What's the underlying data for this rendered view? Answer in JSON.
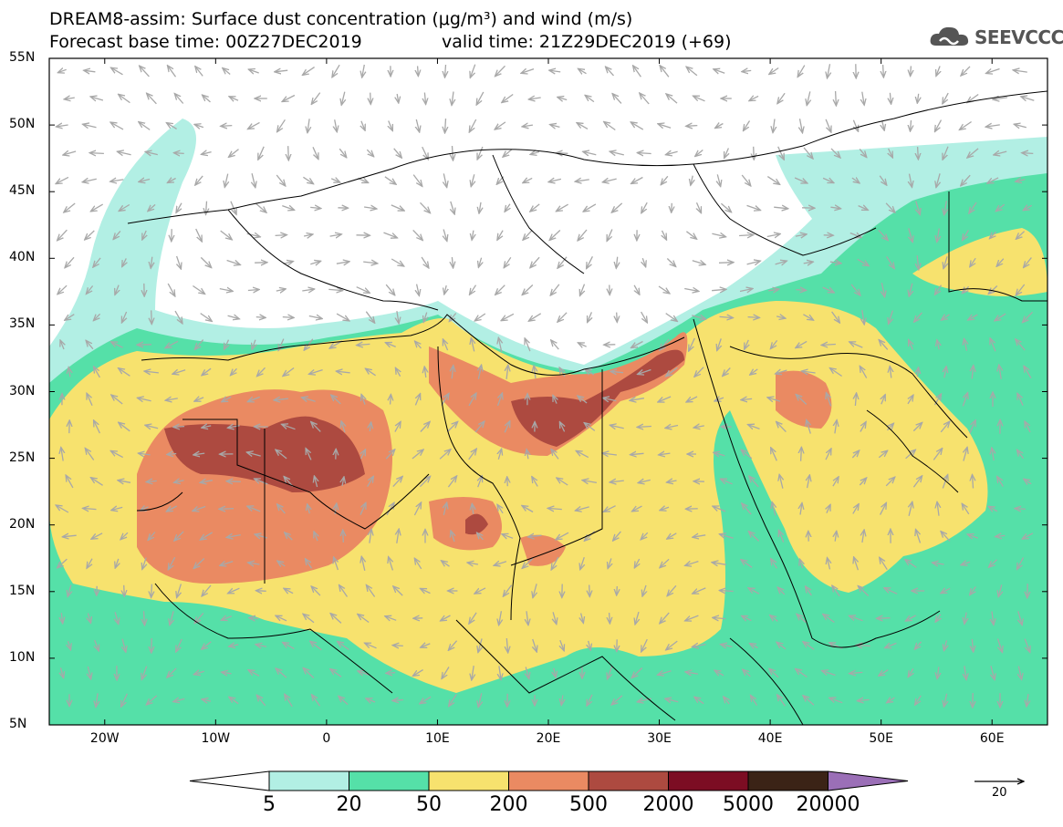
{
  "header": {
    "title_line1": "DREAM8-assim: Surface dust concentration (μg/m³) and wind (m/s)",
    "base_time": "Forecast base time: 00Z27DEC2019",
    "valid_time": "valid time: 21Z29DEC2019 (+69)"
  },
  "logo": {
    "text": "SEEVCCC",
    "icon": "cloud-icon"
  },
  "map": {
    "lon_range": [
      -25,
      65
    ],
    "lat_range": [
      5,
      55
    ],
    "lat_labels": [
      "55N",
      "50N",
      "45N",
      "40N",
      "35N",
      "30N",
      "25N",
      "20N",
      "15N",
      "10N",
      "5N"
    ],
    "lon_labels": [
      "20W",
      "10W",
      "0",
      "10E",
      "20E",
      "30E",
      "40E",
      "50E",
      "60E"
    ],
    "arrow_color": "#a8a8a8",
    "border_color": "#000000"
  },
  "colorbar": {
    "labels": [
      "5",
      "20",
      "50",
      "200",
      "500",
      "2000",
      "5000",
      "20000"
    ],
    "colors": [
      "#b2efe4",
      "#55e0a8",
      "#f7e26e",
      "#ea8a62",
      "#ad4a40",
      "#7c0d23",
      "#3b2316"
    ],
    "overflow_color": "#9b6fb7",
    "underflow_color": "#ffffff"
  },
  "wind_reference": {
    "label": "20"
  }
}
